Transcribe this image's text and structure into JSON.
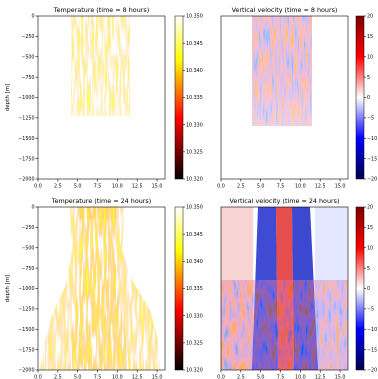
{
  "chart_data": [
    {
      "type": "heatmap",
      "title": "Temperature (time = 8 hours)",
      "ylabel": "depth [m]",
      "xlim": [
        0,
        16
      ],
      "ylim": [
        -2000,
        0
      ],
      "xticks": [
        "0.0",
        "2.5",
        "5.0",
        "7.5",
        "10.0",
        "12.5",
        "15.0"
      ],
      "yticks": [
        "0",
        "−250",
        "−500",
        "−750",
        "−1000",
        "−1250",
        "−1500",
        "−1750",
        "−2000"
      ],
      "colorbar": {
        "colormap": "hot",
        "range": [
          10.32,
          10.35
        ],
        "ticks": [
          "10.350",
          "10.345",
          "10.340",
          "10.335",
          "10.330",
          "10.325",
          "10.320"
        ]
      },
      "plume": {
        "x_range": [
          4.5,
          12.0
        ],
        "max_depth": -1000
      }
    },
    {
      "type": "heatmap",
      "title": "Vertical velocity (time = 8 hours)",
      "xlim": [
        0,
        16
      ],
      "ylim": [
        -2000,
        0
      ],
      "xticks": [
        "0.0",
        "2.5",
        "5.0",
        "7.5",
        "10.0",
        "12.5",
        "15.0"
      ],
      "colorbar": {
        "colormap": "seismic",
        "range": [
          -20,
          20
        ],
        "ticks": [
          "20",
          "15",
          "10",
          "5",
          "0",
          "−5",
          "−10",
          "−15",
          "−20"
        ]
      },
      "plume": {
        "x_range": [
          4.5,
          12.0
        ],
        "max_depth": -1000
      }
    },
    {
      "type": "heatmap",
      "title": "Temperature (time = 24 hours)",
      "ylabel": "depth [m]",
      "xlim": [
        0,
        16
      ],
      "ylim": [
        -2000,
        0
      ],
      "xticks": [
        "0.0",
        "2.5",
        "5.0",
        "7.5",
        "10.0",
        "12.5",
        "15.0"
      ],
      "yticks": [
        "0",
        "−250",
        "−500",
        "−750",
        "−1000",
        "−1250",
        "−1500",
        "−1750",
        "−2000"
      ],
      "colorbar": {
        "colormap": "hot",
        "range": [
          10.32,
          10.35
        ],
        "ticks": [
          "10.350",
          "10.345",
          "10.340",
          "10.335",
          "10.330",
          "10.325",
          "10.320"
        ]
      },
      "plume": {
        "x_range": [
          1.0,
          15.0
        ],
        "max_depth": -2000
      }
    },
    {
      "type": "heatmap",
      "title": "Vertical velocity (time = 24 hours)",
      "xlim": [
        0,
        16
      ],
      "ylim": [
        -2000,
        0
      ],
      "xticks": [
        "0.0",
        "2.5",
        "5.0",
        "7.5",
        "10.0",
        "12.5",
        "15.0"
      ],
      "colorbar": {
        "colormap": "seismic",
        "range": [
          -20,
          20
        ],
        "ticks": [
          "20",
          "15",
          "10",
          "5",
          "0",
          "−5",
          "−10",
          "−15",
          "−20"
        ]
      },
      "plume": {
        "x_range": [
          0.0,
          16.0
        ],
        "max_depth": -2000
      }
    }
  ]
}
